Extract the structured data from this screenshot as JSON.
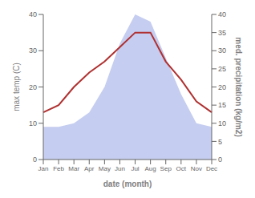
{
  "chart_data": {
    "type": "line",
    "categories": [
      "Jan",
      "Feb",
      "Mar",
      "Apr",
      "May",
      "Jun",
      "Jul",
      "Aug",
      "Sep",
      "Oct",
      "Nov",
      "Dec"
    ],
    "series": [
      {
        "type": "line",
        "color": "#b03030",
        "values": [
          13,
          15,
          20,
          24,
          27,
          31,
          35,
          35,
          27,
          22,
          16,
          13
        ]
      },
      {
        "type": "area",
        "color": "#c5cdf0",
        "axis": "y2",
        "values": [
          9,
          9,
          10,
          13,
          20,
          32,
          40,
          38,
          28,
          18,
          10,
          9
        ]
      }
    ],
    "xlabel": "date (month)",
    "ylabel": "max temp (C)",
    "y2label": "med. precipitation (kg/m2)",
    "ylim": [
      0,
      40
    ],
    "yticks": [
      0,
      10,
      20,
      30,
      40
    ],
    "y2lim": [
      0,
      40
    ],
    "y2ticks": [
      0,
      5,
      10,
      15,
      20,
      25,
      30,
      35,
      40
    ],
    "grid": false
  }
}
